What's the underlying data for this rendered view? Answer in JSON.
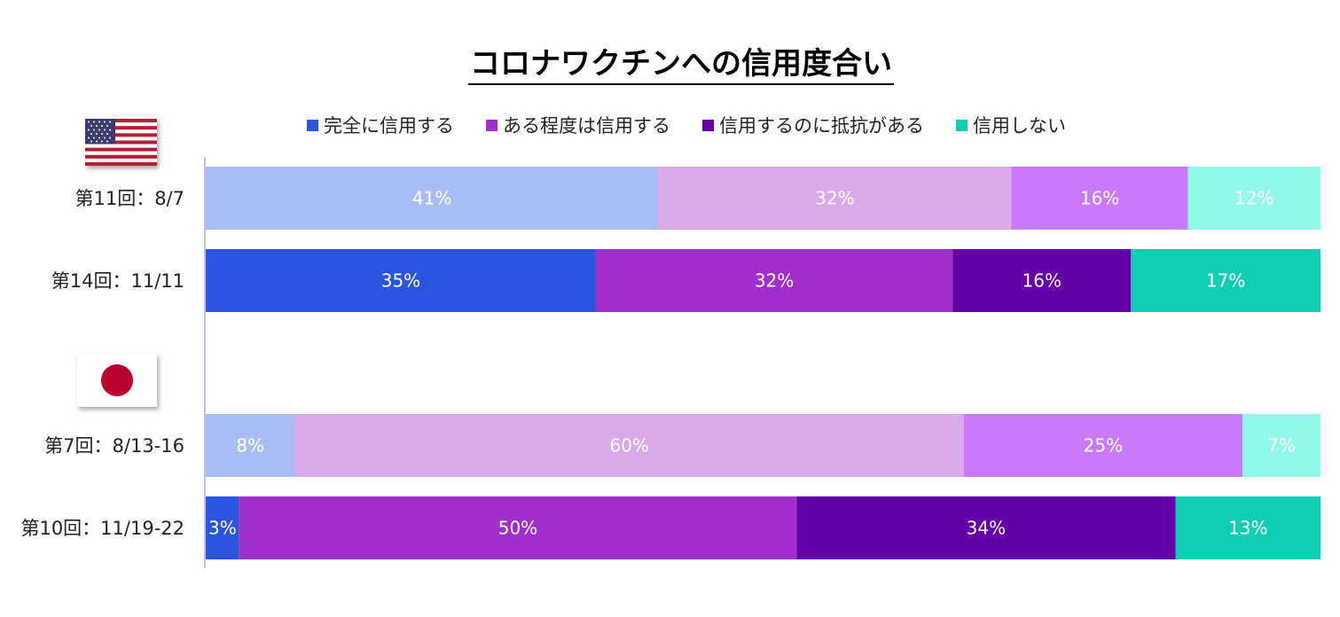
{
  "chart_data": {
    "type": "bar",
    "orientation": "horizontal",
    "stacked": true,
    "normalized": true,
    "title": "コロナワクチンへの信用度合い",
    "legend_position": "top",
    "legend": [
      {
        "name": "完全に信用する",
        "color": "#2b55de"
      },
      {
        "name": "ある程度は信用する",
        "color": "#a02fcc"
      },
      {
        "name": "信用するのに抵抗がある",
        "color": "#6500a8"
      },
      {
        "name": "信用しない",
        "color": "#10cdb6"
      }
    ],
    "groups": [
      {
        "flag": "us-flag-icon",
        "rows": [
          0,
          1
        ]
      },
      {
        "flag": "jp-flag-icon",
        "rows": [
          2,
          3
        ]
      }
    ],
    "rows": [
      {
        "label": "第11回：8/7",
        "values": [
          41,
          32,
          16,
          12
        ],
        "labels": [
          "41%",
          "32%",
          "16%",
          "12%"
        ],
        "colors": [
          "#aabcf4",
          "#dba8ea",
          "#c979fd",
          "#92f9e9"
        ]
      },
      {
        "label": "第14回：11/11",
        "values": [
          35,
          32,
          16,
          17
        ],
        "labels": [
          "35%",
          "32%",
          "16%",
          "17%"
        ],
        "colors": [
          "#2b55de",
          "#a02fcc",
          "#6500a8",
          "#10cdb6"
        ]
      },
      {
        "label": "第7回：8/13-16",
        "values": [
          8,
          60,
          25,
          7
        ],
        "labels": [
          "8%",
          "60%",
          "25%",
          "7%"
        ],
        "colors": [
          "#aabcf4",
          "#dba8ea",
          "#c979fd",
          "#92f9e9"
        ]
      },
      {
        "label": "第10回：11/19-22",
        "values": [
          3,
          50,
          34,
          13
        ],
        "labels": [
          "3%",
          "50%",
          "34%",
          "13%"
        ],
        "colors": [
          "#2b55de",
          "#a02fcc",
          "#6500a8",
          "#10cdb6"
        ]
      }
    ]
  }
}
